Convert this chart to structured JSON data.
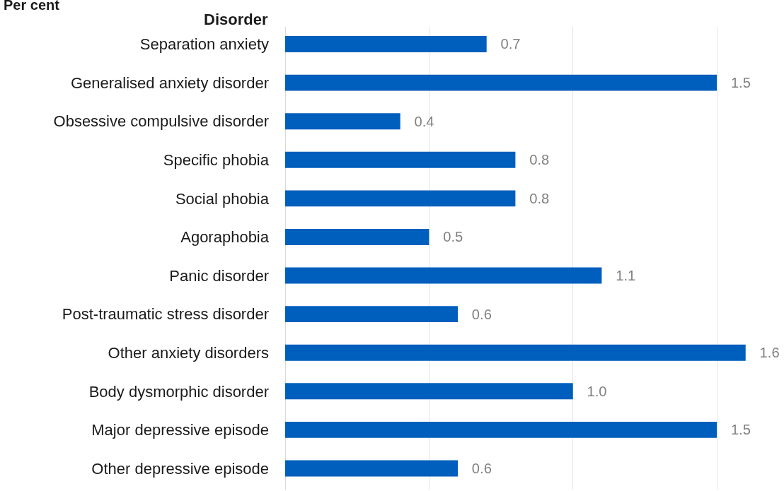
{
  "chart_data": {
    "type": "bar",
    "orientation": "horizontal",
    "ylabel": "Disorder",
    "annotations": [
      "Per cent"
    ],
    "categories": [
      "Separation anxiety",
      "Generalised anxiety disorder",
      "Obsessive compulsive disorder",
      "Specific phobia",
      "Social phobia",
      "Agoraphobia",
      "Panic disorder",
      "Post-traumatic stress disorder",
      "Other anxiety disorders",
      "Body dysmorphic disorder",
      "Major depressive episode",
      "Other depressive episode"
    ],
    "values": [
      0.7,
      1.5,
      0.4,
      0.8,
      0.8,
      0.5,
      1.1,
      0.6,
      1.6,
      1.0,
      1.5,
      0.6
    ],
    "value_labels": [
      "0.7",
      "1.5",
      "0.4",
      "0.8",
      "0.8",
      "0.5",
      "1.1",
      "0.6",
      "1.6",
      "1.0",
      "1.5",
      "0.6"
    ],
    "color": "#005ebd",
    "xticks": [
      {
        "value": 0,
        "label": null
      },
      {
        "value": 0.5,
        "label": null
      },
      {
        "value": 1,
        "label": null
      },
      {
        "value": 1.5,
        "label": null
      }
    ],
    "tick_labels": "y",
    "grid": "x",
    "legend": false
  }
}
